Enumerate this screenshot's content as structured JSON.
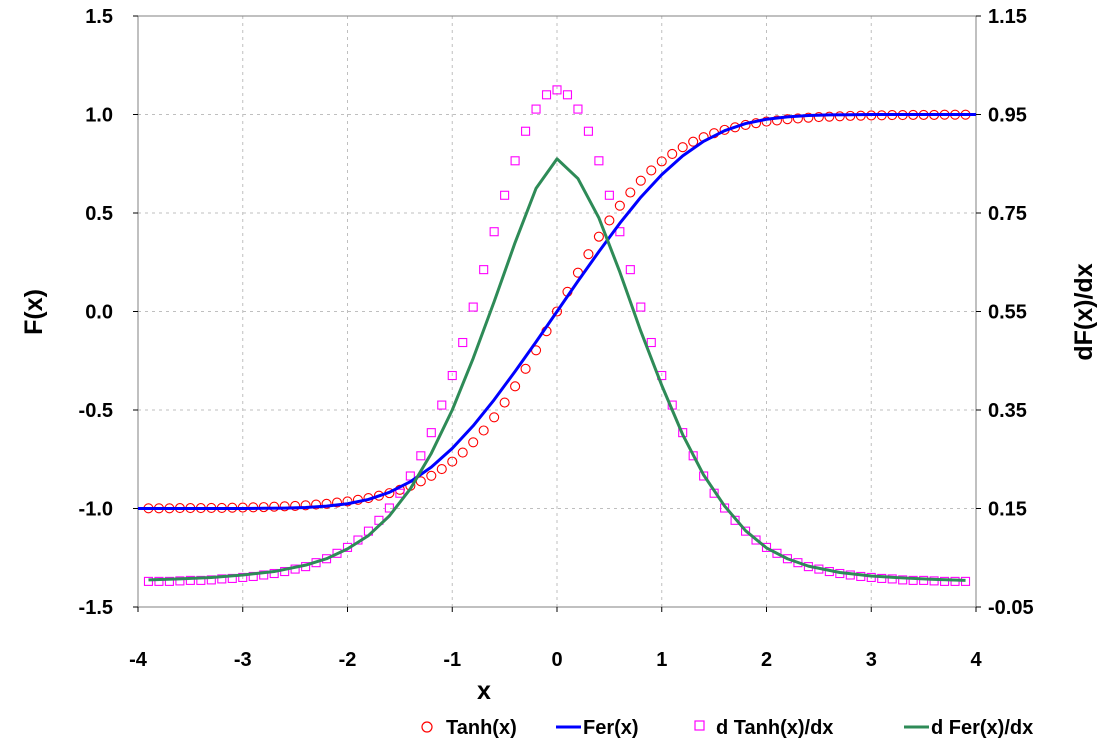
{
  "chart_data": {
    "type": "line",
    "xlabel": "x",
    "ylabel_left": "F(x)",
    "ylabel_right": "dF(x)/dx",
    "xlim": [
      -4,
      4
    ],
    "ylim_left": [
      -1.5,
      1.5
    ],
    "ylim_right": [
      -0.05,
      1.15
    ],
    "xticks": [
      "-4",
      "-3",
      "-2",
      "-1",
      "0",
      "1",
      "2",
      "3",
      "4"
    ],
    "yticks_left": [
      "1.5",
      "1.0",
      "0.5",
      "0.0",
      "-0.5",
      "-1.0",
      "-1.5"
    ],
    "yticks_right": [
      "1.15",
      "0.95",
      "0.75",
      "0.55",
      "0.35",
      "0.15",
      "-0.05"
    ],
    "grid": true,
    "legend_position": "bottom",
    "series": [
      {
        "name": "Tanh(x)",
        "axis": "left",
        "marker": "circle",
        "color": "#ff0000",
        "x": [
          -3.9,
          -3.8,
          -3.7,
          -3.6,
          -3.5,
          -3.4,
          -3.3,
          -3.2,
          -3.1,
          -3.0,
          -2.9,
          -2.8,
          -2.7,
          -2.6,
          -2.5,
          -2.4,
          -2.3,
          -2.2,
          -2.1,
          -2.0,
          -1.9,
          -1.8,
          -1.7,
          -1.6,
          -1.5,
          -1.4,
          -1.3,
          -1.2,
          -1.1,
          -1.0,
          -0.9,
          -0.8,
          -0.7,
          -0.6,
          -0.5,
          -0.4,
          -0.3,
          -0.2,
          -0.1,
          0.0,
          0.1,
          0.2,
          0.3,
          0.4,
          0.5,
          0.6,
          0.7,
          0.8,
          0.9,
          1.0,
          1.1,
          1.2,
          1.3,
          1.4,
          1.5,
          1.6,
          1.7,
          1.8,
          1.9,
          2.0,
          2.1,
          2.2,
          2.3,
          2.4,
          2.5,
          2.6,
          2.7,
          2.8,
          2.9,
          3.0,
          3.1,
          3.2,
          3.3,
          3.4,
          3.5,
          3.6,
          3.7,
          3.8,
          3.9
        ],
        "y": [
          -0.999,
          -0.999,
          -0.999,
          -0.998,
          -0.998,
          -0.998,
          -0.997,
          -0.997,
          -0.996,
          -0.995,
          -0.994,
          -0.993,
          -0.991,
          -0.989,
          -0.987,
          -0.984,
          -0.98,
          -0.976,
          -0.97,
          -0.964,
          -0.956,
          -0.947,
          -0.935,
          -0.922,
          -0.905,
          -0.885,
          -0.862,
          -0.834,
          -0.8,
          -0.762,
          -0.716,
          -0.664,
          -0.604,
          -0.537,
          -0.462,
          -0.38,
          -0.291,
          -0.197,
          -0.1,
          0.0,
          0.1,
          0.197,
          0.291,
          0.38,
          0.462,
          0.537,
          0.604,
          0.664,
          0.716,
          0.762,
          0.8,
          0.834,
          0.862,
          0.885,
          0.905,
          0.922,
          0.935,
          0.947,
          0.956,
          0.964,
          0.97,
          0.976,
          0.98,
          0.984,
          0.987,
          0.989,
          0.991,
          0.993,
          0.994,
          0.995,
          0.996,
          0.997,
          0.997,
          0.998,
          0.998,
          0.998,
          0.999,
          0.999,
          0.999
        ]
      },
      {
        "name": "Fer(x)",
        "axis": "left",
        "marker": "none",
        "color": "#0000ff",
        "x": [
          -4.0,
          -3.8,
          -3.6,
          -3.4,
          -3.2,
          -3.0,
          -2.8,
          -2.6,
          -2.4,
          -2.2,
          -2.0,
          -1.8,
          -1.6,
          -1.4,
          -1.2,
          -1.0,
          -0.8,
          -0.6,
          -0.4,
          -0.2,
          0.0,
          0.2,
          0.4,
          0.6,
          0.8,
          1.0,
          1.2,
          1.4,
          1.6,
          1.8,
          2.0,
          2.2,
          2.4,
          2.6,
          2.8,
          3.0,
          3.2,
          3.4,
          3.6,
          3.8,
          4.0
        ],
        "y": [
          -1.0,
          -1.0,
          -1.0,
          -1.0,
          -1.0,
          -1.0,
          -0.999,
          -0.998,
          -0.995,
          -0.988,
          -0.976,
          -0.954,
          -0.918,
          -0.864,
          -0.79,
          -0.695,
          -0.58,
          -0.448,
          -0.304,
          -0.154,
          0.0,
          0.154,
          0.304,
          0.448,
          0.58,
          0.695,
          0.79,
          0.864,
          0.918,
          0.954,
          0.976,
          0.988,
          0.995,
          0.998,
          0.999,
          1.0,
          1.0,
          1.0,
          1.0,
          1.0,
          1.0
        ]
      },
      {
        "name": "d Tanh(x)/dx",
        "axis": "right",
        "marker": "square",
        "color": "#ff00ff",
        "x": [
          -3.9,
          -3.8,
          -3.7,
          -3.6,
          -3.5,
          -3.4,
          -3.3,
          -3.2,
          -3.1,
          -3.0,
          -2.9,
          -2.8,
          -2.7,
          -2.6,
          -2.5,
          -2.4,
          -2.3,
          -2.2,
          -2.1,
          -2.0,
          -1.9,
          -1.8,
          -1.7,
          -1.6,
          -1.5,
          -1.4,
          -1.3,
          -1.2,
          -1.1,
          -1.0,
          -0.9,
          -0.8,
          -0.7,
          -0.6,
          -0.5,
          -0.4,
          -0.3,
          -0.2,
          -0.1,
          0.0,
          0.1,
          0.2,
          0.3,
          0.4,
          0.5,
          0.6,
          0.7,
          0.8,
          0.9,
          1.0,
          1.1,
          1.2,
          1.3,
          1.4,
          1.5,
          1.6,
          1.7,
          1.8,
          1.9,
          2.0,
          2.1,
          2.2,
          2.3,
          2.4,
          2.5,
          2.6,
          2.7,
          2.8,
          2.9,
          3.0,
          3.1,
          3.2,
          3.3,
          3.4,
          3.5,
          3.6,
          3.7,
          3.8,
          3.9
        ],
        "y": [
          0.002,
          0.002,
          0.002,
          0.003,
          0.004,
          0.004,
          0.005,
          0.007,
          0.008,
          0.01,
          0.012,
          0.015,
          0.018,
          0.022,
          0.027,
          0.032,
          0.04,
          0.048,
          0.059,
          0.071,
          0.086,
          0.104,
          0.126,
          0.151,
          0.181,
          0.216,
          0.257,
          0.304,
          0.36,
          0.42,
          0.487,
          0.559,
          0.635,
          0.712,
          0.786,
          0.856,
          0.916,
          0.961,
          0.99,
          1.0,
          0.99,
          0.961,
          0.916,
          0.856,
          0.786,
          0.712,
          0.635,
          0.559,
          0.487,
          0.42,
          0.36,
          0.304,
          0.257,
          0.216,
          0.181,
          0.151,
          0.126,
          0.104,
          0.086,
          0.071,
          0.059,
          0.048,
          0.04,
          0.032,
          0.027,
          0.022,
          0.018,
          0.015,
          0.012,
          0.01,
          0.008,
          0.007,
          0.005,
          0.004,
          0.004,
          0.003,
          0.002,
          0.002,
          0.002
        ]
      },
      {
        "name": "d Fer(x)/dx",
        "axis": "right",
        "marker": "none",
        "color": "#2e8b57",
        "x": [
          -3.9,
          -3.6,
          -3.3,
          -3.0,
          -2.7,
          -2.4,
          -2.2,
          -2.0,
          -1.8,
          -1.6,
          -1.4,
          -1.2,
          -1.0,
          -0.8,
          -0.6,
          -0.4,
          -0.2,
          0.0,
          0.2,
          0.4,
          0.6,
          0.8,
          1.0,
          1.2,
          1.4,
          1.6,
          1.8,
          2.0,
          2.2,
          2.4,
          2.7,
          3.0,
          3.3,
          3.6,
          3.9
        ],
        "y": [
          0.005,
          0.007,
          0.01,
          0.015,
          0.022,
          0.035,
          0.048,
          0.068,
          0.095,
          0.135,
          0.19,
          0.262,
          0.35,
          0.455,
          0.57,
          0.69,
          0.8,
          0.86,
          0.82,
          0.74,
          0.63,
          0.51,
          0.4,
          0.3,
          0.218,
          0.155,
          0.105,
          0.07,
          0.048,
          0.033,
          0.02,
          0.013,
          0.009,
          0.006,
          0.004
        ]
      }
    ]
  }
}
